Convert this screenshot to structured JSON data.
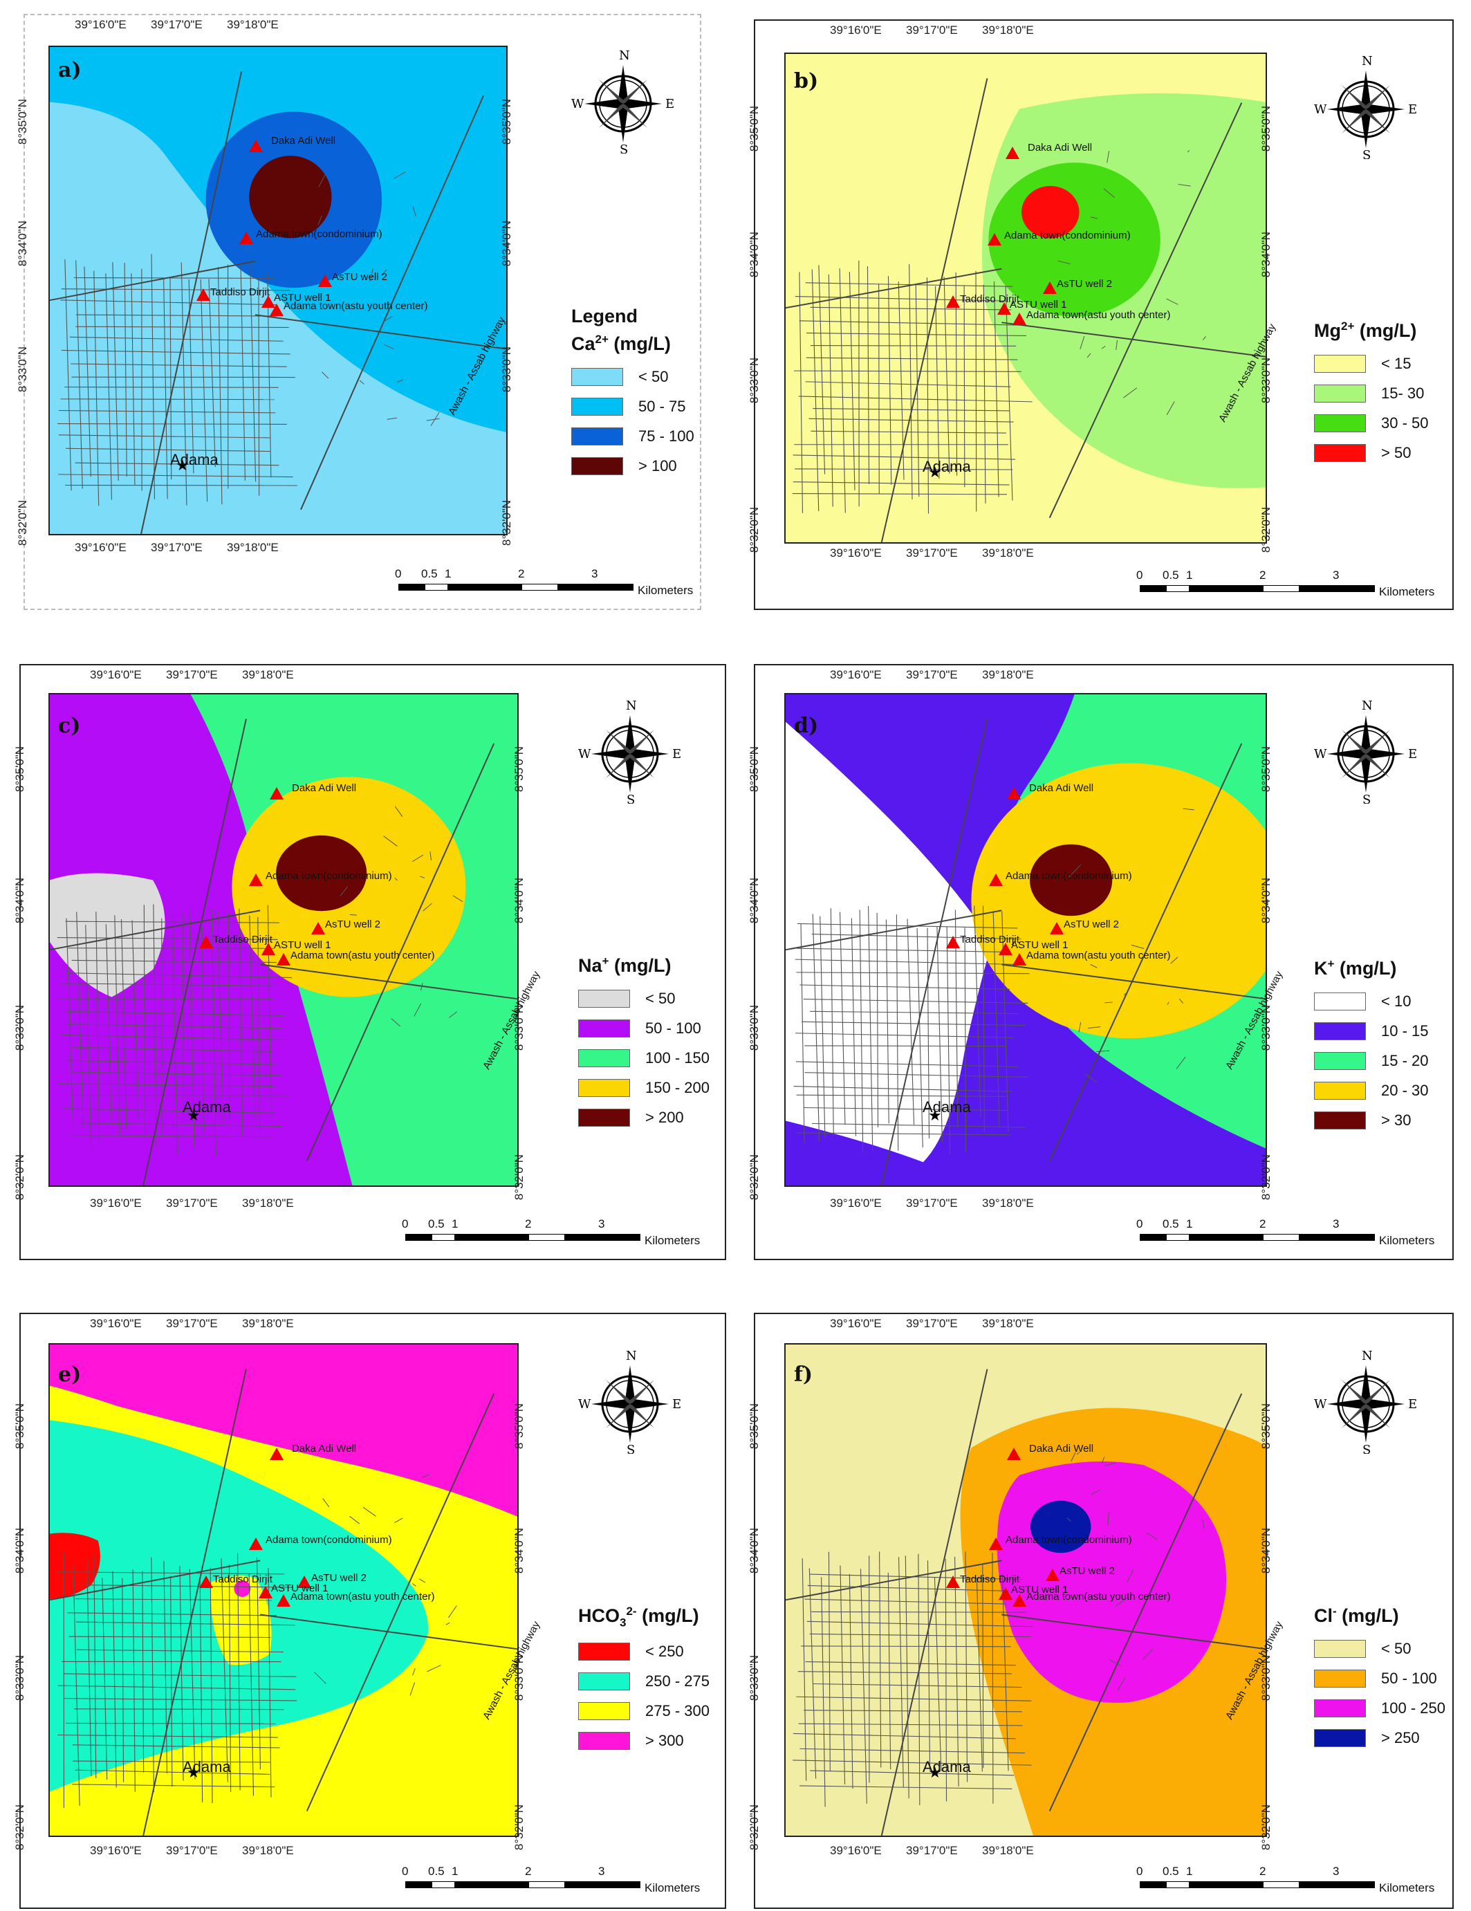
{
  "coords": {
    "lon_ticks": [
      "39°16'0\"E",
      "39°17'0\"E",
      "39°18'0\"E"
    ],
    "lat_ticks": [
      "8°35'0\"N",
      "8°34'0\"N",
      "8°33'0\"N",
      "8°32'0\"N"
    ]
  },
  "sites": {
    "daka": "Daka Adi Well",
    "condo": "Adama town(condominium)",
    "taddiso": "Taddiso Dirjit",
    "astu2": "AsTU well 2",
    "astu1": "ASTU well 1",
    "youth": "Adama town(astu youth center)"
  },
  "city": "Adama",
  "highway": "Awash - Assab highway",
  "compass": {
    "n": "N",
    "s": "S",
    "e": "E",
    "w": "W"
  },
  "scale": {
    "labels": [
      "0",
      "0.5",
      "1",
      "2",
      "3"
    ],
    "unit": "Kilometers"
  },
  "panels": [
    {
      "id": "a",
      "letter": "a)",
      "legend_title": "Legend",
      "param": "Ca",
      "sup": "2+",
      "sub": "",
      "unit": "(mg/L)",
      "classes": [
        {
          "label": "< 50",
          "color": "#7ddcf7"
        },
        {
          "label": "50 - 75",
          "color": "#00bff5"
        },
        {
          "label": "75 - 100",
          "color": "#0a62d9"
        },
        {
          "label": "> 100",
          "color": "#5e0505"
        }
      ]
    },
    {
      "id": "b",
      "letter": "b)",
      "legend_title": "",
      "param": "Mg",
      "sup": "2+",
      "sub": "",
      "unit": "(mg/L)",
      "classes": [
        {
          "label": "< 15",
          "color": "#fbfb98"
        },
        {
          "label": "15- 30",
          "color": "#a9f77a"
        },
        {
          "label": "30 - 50",
          "color": "#46dd12"
        },
        {
          "label": "> 50",
          "color": "#ff0a0a"
        }
      ]
    },
    {
      "id": "c",
      "letter": "c)",
      "legend_title": "",
      "param": "Na",
      "sup": "+",
      "sub": "",
      "unit": "(mg/L)",
      "classes": [
        {
          "label": "< 50",
          "color": "#dcdcdc"
        },
        {
          "label": "50 - 100",
          "color": "#b40cf7"
        },
        {
          "label": "100 - 150",
          "color": "#35f789"
        },
        {
          "label": "150 - 200",
          "color": "#fbd602"
        },
        {
          "label": "> 200",
          "color": "#6b0404"
        }
      ]
    },
    {
      "id": "d",
      "letter": "d)",
      "legend_title": "",
      "param": "K",
      "sup": "+",
      "sub": "",
      "unit": "(mg/L)",
      "classes": [
        {
          "label": "< 10",
          "color": "#ffffff"
        },
        {
          "label": "10 - 15",
          "color": "#5719ee"
        },
        {
          "label": "15 - 20",
          "color": "#35f789"
        },
        {
          "label": "20 - 30",
          "color": "#fbd602"
        },
        {
          "label": "> 30",
          "color": "#6b0404"
        }
      ]
    },
    {
      "id": "e",
      "letter": "e)",
      "legend_title": "",
      "param": "HCO",
      "sup": "2-",
      "sub": "3",
      "unit": "(mg/L)",
      "classes": [
        {
          "label": "< 250",
          "color": "#ff0505"
        },
        {
          "label": "250 - 275",
          "color": "#15f7c7"
        },
        {
          "label": "275 - 300",
          "color": "#ffff05"
        },
        {
          "label": "> 300",
          "color": "#ff14d8"
        }
      ]
    },
    {
      "id": "f",
      "letter": "f)",
      "legend_title": "",
      "param": "Cl",
      "sup": "-",
      "sub": "",
      "unit": "(mg/L)",
      "classes": [
        {
          "label": "< 50",
          "color": "#f1eda5"
        },
        {
          "label": "50 - 100",
          "color": "#fbad05"
        },
        {
          "label": "100 - 250",
          "color": "#ee12ee"
        },
        {
          "label": "> 250",
          "color": "#0617a8"
        }
      ]
    }
  ]
}
